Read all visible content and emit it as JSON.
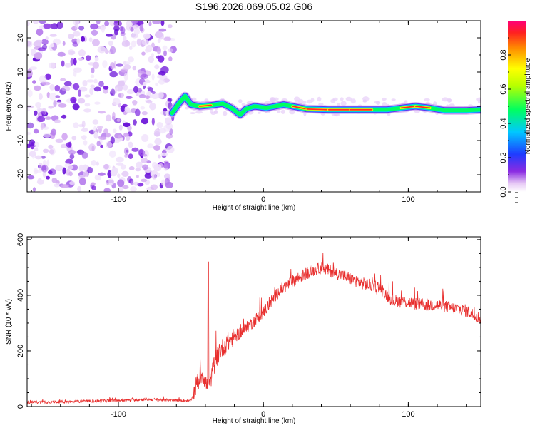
{
  "title": "S196.2026.069.05.02.G06",
  "chart_data": [
    {
      "type": "heatmap",
      "name": "spectrogram",
      "xlabel": "Height of straight line (km)",
      "ylabel": "Frequency (Hz)",
      "xlim": [
        -163,
        150
      ],
      "ylim": [
        -25,
        25
      ],
      "xticks": [
        -100,
        0,
        100
      ],
      "yticks": [
        -20,
        -10,
        0,
        10,
        20
      ],
      "noise_region_x": [
        -163,
        -60
      ],
      "signal_ridge": [
        {
          "x": -63,
          "f": -2.0,
          "amp": 0.25
        },
        {
          "x": -58,
          "f": 1.0,
          "amp": 0.45
        },
        {
          "x": -54,
          "f": 3.0,
          "amp": 0.35
        },
        {
          "x": -50,
          "f": 0.5,
          "amp": 0.6
        },
        {
          "x": -44,
          "f": 0.0,
          "amp": 0.9
        },
        {
          "x": -36,
          "f": 0.3,
          "amp": 0.85
        },
        {
          "x": -28,
          "f": 0.8,
          "amp": 0.5
        },
        {
          "x": -22,
          "f": -0.5,
          "amp": 0.45
        },
        {
          "x": -16,
          "f": -2.5,
          "amp": 0.4
        },
        {
          "x": -12,
          "f": -0.8,
          "amp": 0.55
        },
        {
          "x": -6,
          "f": 0.0,
          "amp": 0.9
        },
        {
          "x": 2,
          "f": -0.5,
          "amp": 0.65
        },
        {
          "x": 8,
          "f": 0.0,
          "amp": 0.9
        },
        {
          "x": 14,
          "f": 0.5,
          "amp": 0.55
        },
        {
          "x": 20,
          "f": 0.0,
          "amp": 0.9
        },
        {
          "x": 30,
          "f": -0.8,
          "amp": 0.9
        },
        {
          "x": 45,
          "f": -1.0,
          "amp": 0.95
        },
        {
          "x": 60,
          "f": -1.0,
          "amp": 0.95
        },
        {
          "x": 75,
          "f": -1.0,
          "amp": 0.95
        },
        {
          "x": 85,
          "f": -1.0,
          "amp": 0.7
        },
        {
          "x": 95,
          "f": -0.5,
          "amp": 0.85
        },
        {
          "x": 105,
          "f": 0.0,
          "amp": 0.9
        },
        {
          "x": 115,
          "f": -0.5,
          "amp": 0.85
        },
        {
          "x": 125,
          "f": -1.2,
          "amp": 0.5
        },
        {
          "x": 140,
          "f": -1.2,
          "amp": 0.45
        },
        {
          "x": 150,
          "f": -1.0,
          "amp": 0.4
        }
      ]
    },
    {
      "type": "colorbar",
      "name": "amplitude-colorbar",
      "label": "Normalized spectral amplitude",
      "range": [
        0,
        1
      ],
      "ticks": [
        "0.0",
        "0.2",
        "0.4",
        "0.6",
        "0.8"
      ],
      "tick_values": [
        0,
        0.2,
        0.4,
        0.6,
        0.8
      ]
    },
    {
      "type": "line",
      "name": "snr",
      "xlabel": "Height of straight line (km)",
      "ylabel": "SNR (10 * v/v)",
      "xlim": [
        -163,
        150
      ],
      "ylim": [
        0,
        610
      ],
      "xticks": [
        -100,
        0,
        100
      ],
      "yticks": [
        0,
        200,
        400,
        600
      ],
      "color": "#e8302f",
      "envelope": [
        {
          "x": -163,
          "y": 15
        },
        {
          "x": -130,
          "y": 18
        },
        {
          "x": -100,
          "y": 22
        },
        {
          "x": -80,
          "y": 26
        },
        {
          "x": -60,
          "y": 22
        },
        {
          "x": -50,
          "y": 20
        },
        {
          "x": -46,
          "y": 80
        },
        {
          "x": -42,
          "y": 120
        },
        {
          "x": -38,
          "y": 60
        },
        {
          "x": -34,
          "y": 150
        },
        {
          "x": -30,
          "y": 200
        },
        {
          "x": -25,
          "y": 230
        },
        {
          "x": -20,
          "y": 250
        },
        {
          "x": -10,
          "y": 290
        },
        {
          "x": 0,
          "y": 340
        },
        {
          "x": 10,
          "y": 410
        },
        {
          "x": 20,
          "y": 450
        },
        {
          "x": 30,
          "y": 480
        },
        {
          "x": 40,
          "y": 500
        },
        {
          "x": 50,
          "y": 480
        },
        {
          "x": 60,
          "y": 460
        },
        {
          "x": 70,
          "y": 440
        },
        {
          "x": 80,
          "y": 430
        },
        {
          "x": 85,
          "y": 400
        },
        {
          "x": 90,
          "y": 380
        },
        {
          "x": 100,
          "y": 375
        },
        {
          "x": 110,
          "y": 365
        },
        {
          "x": 120,
          "y": 365
        },
        {
          "x": 130,
          "y": 355
        },
        {
          "x": 140,
          "y": 345
        },
        {
          "x": 150,
          "y": 315
        }
      ],
      "spike": {
        "x": -38,
        "y": 520
      }
    }
  ]
}
